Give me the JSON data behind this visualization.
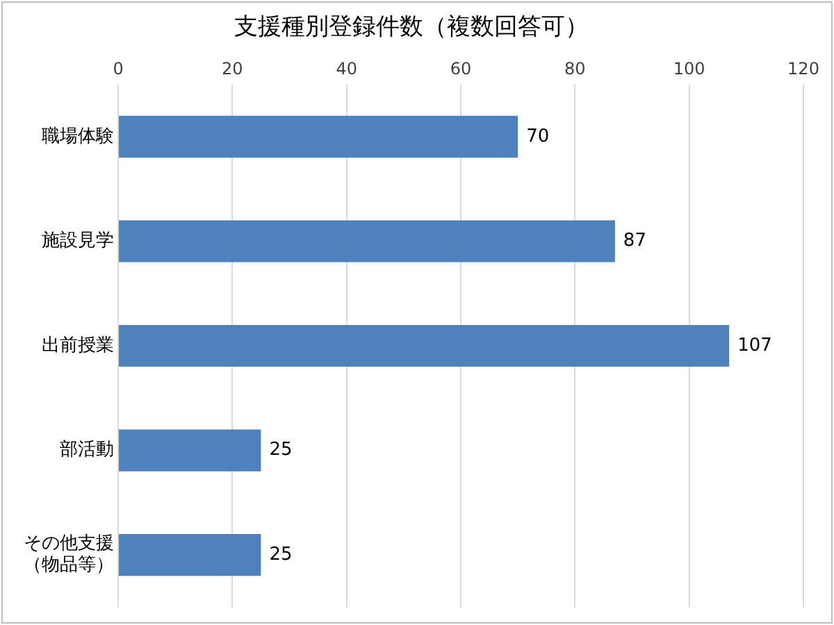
{
  "chart_data": {
    "type": "bar",
    "orientation": "horizontal",
    "title": "支援種別登録件数（複数回答可）",
    "categories": [
      "職場体験",
      "施設見学",
      "出前授業",
      "部活動",
      "その他支援（物品等）"
    ],
    "values": [
      70,
      87,
      107,
      25,
      25
    ],
    "color": "#4f81bd",
    "xlim": [
      0,
      120
    ],
    "xticks": [
      0,
      20,
      40,
      60,
      80,
      100,
      120
    ],
    "grid": "x",
    "data_labels": true,
    "legend": false
  }
}
